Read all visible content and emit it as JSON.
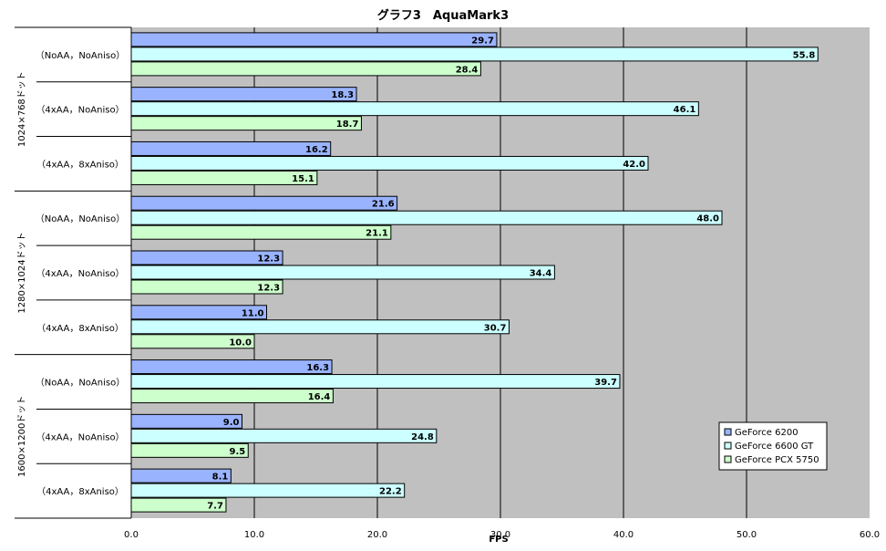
{
  "chart_data": {
    "type": "bar",
    "orientation": "horizontal",
    "title": "グラフ3　AquaMark3",
    "xlabel": "FPS",
    "xlim": [
      0,
      60
    ],
    "xticks": [
      "0.0",
      "10.0",
      "20.0",
      "30.0",
      "40.0",
      "50.0",
      "60.0"
    ],
    "grid": true,
    "legend_position": "bottom-right",
    "groups": [
      {
        "label": "1024×768ドット",
        "categories": [
          "（NoAA，NoAniso）",
          "（4xAA，NoAniso）",
          "（4xAA，8xAniso）"
        ]
      },
      {
        "label": "1280×1024ドット",
        "categories": [
          "（NoAA，NoAniso）",
          "（4xAA，NoAniso）",
          "（4xAA，8xAniso）"
        ]
      },
      {
        "label": "1600×1200ドット",
        "categories": [
          "（NoAA，NoAniso）",
          "（4xAA，NoAniso）",
          "（4xAA，8xAniso）"
        ]
      }
    ],
    "series": [
      {
        "name": "GeForce 6200",
        "color": "#99b3ff",
        "values": [
          29.7,
          18.3,
          16.2,
          21.6,
          12.3,
          11.0,
          16.3,
          9.0,
          8.1
        ],
        "labels": [
          "29.7",
          "18.3",
          "16.2",
          "21.6",
          "12.3",
          "11.0",
          "16.3",
          "9.0",
          "8.1"
        ]
      },
      {
        "name": "GeForce 6600 GT",
        "color": "#ccffff",
        "values": [
          55.8,
          46.1,
          42.0,
          48.0,
          34.4,
          30.7,
          39.7,
          24.8,
          22.2
        ],
        "labels": [
          "55.8",
          "46.1",
          "42.0",
          "48.0",
          "34.4",
          "30.7",
          "39.7",
          "24.8",
          "22.2"
        ]
      },
      {
        "name": "GeForce PCX 5750",
        "color": "#ccffcc",
        "values": [
          28.4,
          18.7,
          15.1,
          21.1,
          12.3,
          10.0,
          16.4,
          9.5,
          7.7
        ],
        "labels": [
          "28.4",
          "18.7",
          "15.1",
          "21.1",
          "12.3",
          "10.0",
          "16.4",
          "9.5",
          "7.7"
        ]
      }
    ]
  }
}
